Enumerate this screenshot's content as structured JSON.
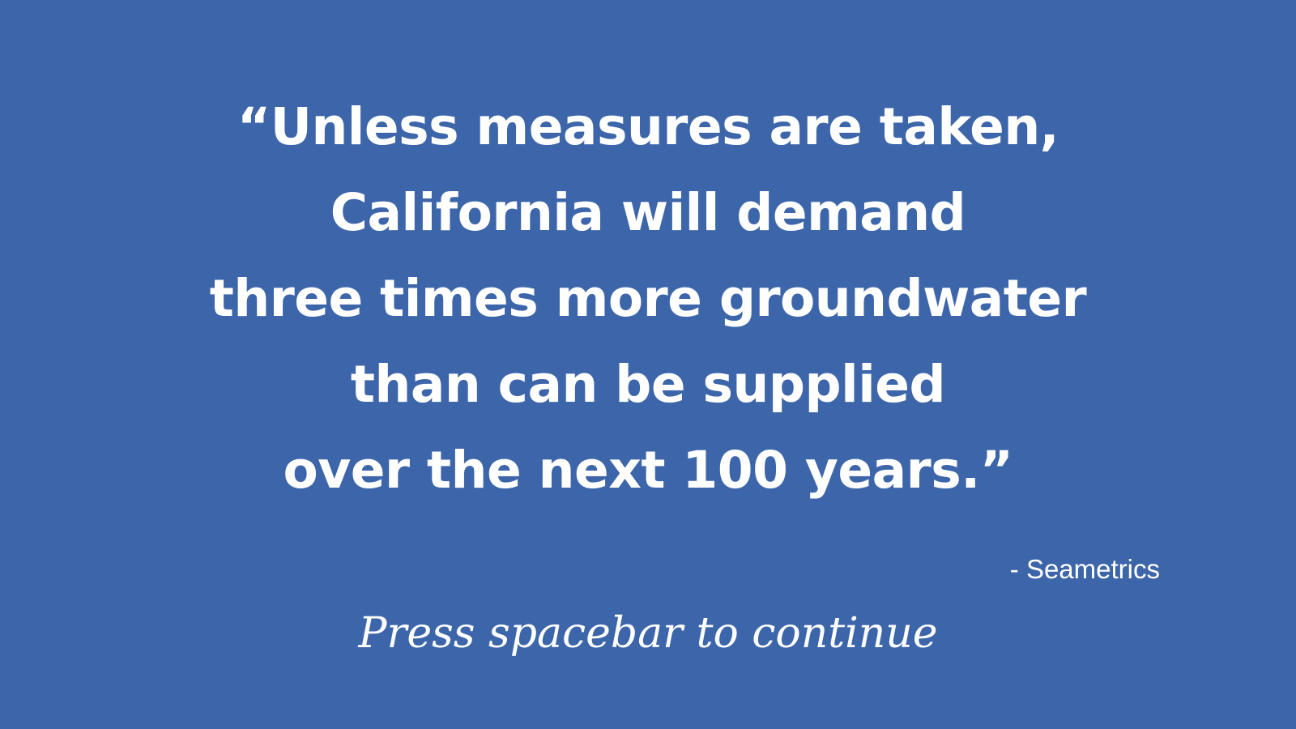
{
  "quote": {
    "lines": [
      "“Unless measures are taken,",
      "California will demand",
      "three times more groundwater",
      "than can be supplied",
      "over the next 100 years.”"
    ],
    "attribution": "- Seametrics"
  },
  "prompt": {
    "text": "Press spacebar to continue"
  },
  "colors": {
    "background": "#3d66aa",
    "text": "#ffffff"
  }
}
